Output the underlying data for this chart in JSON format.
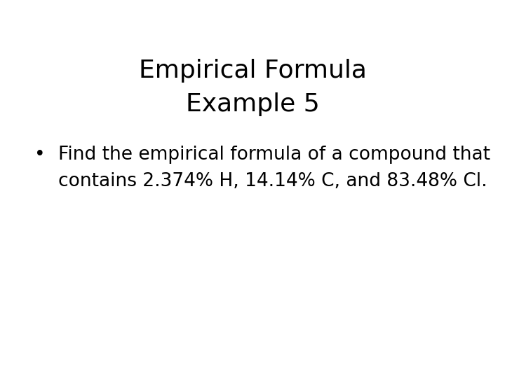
{
  "title_line1": "Empirical Formula",
  "title_line2": "Example 5",
  "bullet_line1": "Find the empirical formula of a compound that",
  "bullet_line2": "contains 2.374% H, 14.14% C, and 83.48% Cl.",
  "title_fontsize": 26,
  "body_fontsize": 19,
  "background_color": "#ffffff",
  "text_color": "#000000",
  "bullet_symbol": "•"
}
